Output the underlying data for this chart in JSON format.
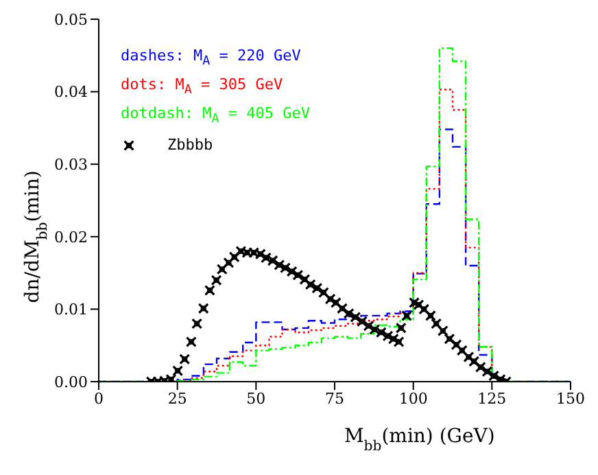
{
  "chart_data": {
    "type": "histogram",
    "xlabel": "M$_{bb}$(min) (GeV)",
    "ylabel": "dn/dM$_{bb}$(min)",
    "bins": [
      0,
      4.17,
      8.33,
      12.5,
      16.67,
      20.83,
      25,
      29.17,
      33.33,
      37.5,
      41.67,
      45.83,
      50,
      54.17,
      58.33,
      62.5,
      66.67,
      70.83,
      75,
      79.17,
      83.33,
      87.5,
      91.67,
      95.83,
      100,
      104.17,
      108.33,
      112.5,
      116.67,
      120.83,
      125,
      129.17,
      133.33,
      137.5,
      141.67,
      145.83,
      150
    ],
    "series": [
      {
        "name": "dashes: M$_{A}$ = 220 GeV",
        "color": "#0000ff",
        "line_style": "dashed",
        "values": [
          0,
          0,
          0,
          0,
          0,
          0,
          0.0003,
          0.0008,
          0.0024,
          0.0032,
          0.0041,
          0.0054,
          0.0082,
          0.0082,
          0.0072,
          0.0074,
          0.0084,
          0.0081,
          0.0086,
          0.009,
          0.0091,
          0.0091,
          0.0094,
          0.0097,
          0.0149,
          0.0245,
          0.0348,
          0.0324,
          0.016,
          0.0037,
          0.0005,
          0,
          0,
          0,
          0,
          0
        ]
      },
      {
        "name": "dots: M$_{A}$ = 305 GeV",
        "color": "#ff0000",
        "line_style": "dotted",
        "values": [
          0,
          0,
          0,
          0,
          0,
          0,
          0.0002,
          0.0005,
          0.0014,
          0.0022,
          0.0035,
          0.0043,
          0.005,
          0.0062,
          0.0072,
          0.0068,
          0.0071,
          0.0074,
          0.0077,
          0.008,
          0.0084,
          0.0086,
          0.009,
          0.0094,
          0.015,
          0.0266,
          0.0403,
          0.0375,
          0.0185,
          0.0048,
          0.0005,
          0,
          0,
          0,
          0,
          0
        ]
      },
      {
        "name": "dotdash: M$_{A}$ = 405 GeV",
        "color": "#00ff00",
        "line_style": "dashdot",
        "values": [
          0,
          0,
          0,
          0,
          0,
          0,
          0.0001,
          0.0003,
          0.0007,
          0.0012,
          0.0027,
          0.0022,
          0.0043,
          0.0045,
          0.0047,
          0.005,
          0.0054,
          0.006,
          0.0062,
          0.006,
          0.0066,
          0.0078,
          0.0076,
          0.0086,
          0.0141,
          0.0297,
          0.046,
          0.0442,
          0.0224,
          0.0048,
          0.0005,
          0,
          0,
          0,
          0,
          0
        ]
      },
      {
        "name": "Zbbbb",
        "type": "scatter",
        "color": "#000000",
        "marker": "cross",
        "x": [
          16.7,
          18.8,
          20.9,
          23.0,
          25.1,
          27.3,
          29.4,
          31.2,
          33.3,
          35.3,
          37.4,
          39.2,
          41.3,
          43.1,
          45.2,
          47.2,
          49.3,
          51.4,
          53.2,
          55.3,
          57.4,
          59.3,
          61.4,
          63.3,
          65.5,
          67.3,
          69.4,
          71.5,
          73.6,
          75.4,
          77.4,
          79.5,
          81.6,
          83.7,
          85.8,
          87.7,
          89.8,
          91.9,
          93.7,
          95.4,
          96.1,
          97.9,
          100.3,
          101.7,
          103.4,
          105.5,
          107.3,
          109.4,
          111.5,
          113.7,
          115.5,
          117.6,
          119.3,
          121.4,
          123.5,
          125.6,
          127.7,
          129.5
        ],
        "values": [
          0,
          0,
          0.0001,
          0.0003,
          0.0015,
          0.0031,
          0.0055,
          0.008,
          0.0101,
          0.0126,
          0.014,
          0.0155,
          0.0164,
          0.0172,
          0.018,
          0.0178,
          0.0178,
          0.0176,
          0.0171,
          0.0167,
          0.0161,
          0.0157,
          0.0152,
          0.0147,
          0.0141,
          0.0134,
          0.0129,
          0.0123,
          0.0114,
          0.0109,
          0.0101,
          0.0094,
          0.0089,
          0.0083,
          0.0077,
          0.0072,
          0.0068,
          0.0063,
          0.0059,
          0.0055,
          0.0074,
          0.0091,
          0.0109,
          0.0106,
          0.01,
          0.0091,
          0.008,
          0.007,
          0.0059,
          0.0051,
          0.0043,
          0.0034,
          0.0028,
          0.002,
          0.0014,
          0.0008,
          0.0003,
          0
        ]
      }
    ],
    "xlim": [
      0,
      150
    ],
    "xticks": [
      0,
      25,
      50,
      75,
      100,
      125,
      150
    ],
    "ylim": [
      0,
      0.05
    ],
    "yticks": [
      {
        "value": 0,
        "label": "0.00"
      },
      0.01,
      0.02,
      0.03,
      0.04,
      0.05
    ],
    "grid": false,
    "legend": "top left"
  }
}
